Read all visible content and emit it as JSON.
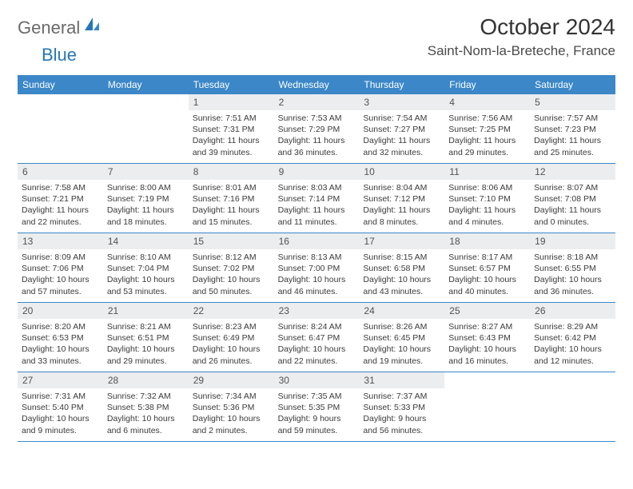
{
  "logo": {
    "text1": "General",
    "text2": "Blue"
  },
  "title": "October 2024",
  "location": "Saint-Nom-la-Breteche, France",
  "weekdays": [
    "Sunday",
    "Monday",
    "Tuesday",
    "Wednesday",
    "Thursday",
    "Friday",
    "Saturday"
  ],
  "colors": {
    "header_bar": "#3b87c8",
    "daynum_bg": "#ecedee",
    "logo_gray": "#6a6a6a",
    "logo_blue": "#2676b8"
  },
  "weeks": [
    [
      null,
      null,
      {
        "n": "1",
        "sr": "Sunrise: 7:51 AM",
        "ss": "Sunset: 7:31 PM",
        "dl": "Daylight: 11 hours and 39 minutes."
      },
      {
        "n": "2",
        "sr": "Sunrise: 7:53 AM",
        "ss": "Sunset: 7:29 PM",
        "dl": "Daylight: 11 hours and 36 minutes."
      },
      {
        "n": "3",
        "sr": "Sunrise: 7:54 AM",
        "ss": "Sunset: 7:27 PM",
        "dl": "Daylight: 11 hours and 32 minutes."
      },
      {
        "n": "4",
        "sr": "Sunrise: 7:56 AM",
        "ss": "Sunset: 7:25 PM",
        "dl": "Daylight: 11 hours and 29 minutes."
      },
      {
        "n": "5",
        "sr": "Sunrise: 7:57 AM",
        "ss": "Sunset: 7:23 PM",
        "dl": "Daylight: 11 hours and 25 minutes."
      }
    ],
    [
      {
        "n": "6",
        "sr": "Sunrise: 7:58 AM",
        "ss": "Sunset: 7:21 PM",
        "dl": "Daylight: 11 hours and 22 minutes."
      },
      {
        "n": "7",
        "sr": "Sunrise: 8:00 AM",
        "ss": "Sunset: 7:19 PM",
        "dl": "Daylight: 11 hours and 18 minutes."
      },
      {
        "n": "8",
        "sr": "Sunrise: 8:01 AM",
        "ss": "Sunset: 7:16 PM",
        "dl": "Daylight: 11 hours and 15 minutes."
      },
      {
        "n": "9",
        "sr": "Sunrise: 8:03 AM",
        "ss": "Sunset: 7:14 PM",
        "dl": "Daylight: 11 hours and 11 minutes."
      },
      {
        "n": "10",
        "sr": "Sunrise: 8:04 AM",
        "ss": "Sunset: 7:12 PM",
        "dl": "Daylight: 11 hours and 8 minutes."
      },
      {
        "n": "11",
        "sr": "Sunrise: 8:06 AM",
        "ss": "Sunset: 7:10 PM",
        "dl": "Daylight: 11 hours and 4 minutes."
      },
      {
        "n": "12",
        "sr": "Sunrise: 8:07 AM",
        "ss": "Sunset: 7:08 PM",
        "dl": "Daylight: 11 hours and 0 minutes."
      }
    ],
    [
      {
        "n": "13",
        "sr": "Sunrise: 8:09 AM",
        "ss": "Sunset: 7:06 PM",
        "dl": "Daylight: 10 hours and 57 minutes."
      },
      {
        "n": "14",
        "sr": "Sunrise: 8:10 AM",
        "ss": "Sunset: 7:04 PM",
        "dl": "Daylight: 10 hours and 53 minutes."
      },
      {
        "n": "15",
        "sr": "Sunrise: 8:12 AM",
        "ss": "Sunset: 7:02 PM",
        "dl": "Daylight: 10 hours and 50 minutes."
      },
      {
        "n": "16",
        "sr": "Sunrise: 8:13 AM",
        "ss": "Sunset: 7:00 PM",
        "dl": "Daylight: 10 hours and 46 minutes."
      },
      {
        "n": "17",
        "sr": "Sunrise: 8:15 AM",
        "ss": "Sunset: 6:58 PM",
        "dl": "Daylight: 10 hours and 43 minutes."
      },
      {
        "n": "18",
        "sr": "Sunrise: 8:17 AM",
        "ss": "Sunset: 6:57 PM",
        "dl": "Daylight: 10 hours and 40 minutes."
      },
      {
        "n": "19",
        "sr": "Sunrise: 8:18 AM",
        "ss": "Sunset: 6:55 PM",
        "dl": "Daylight: 10 hours and 36 minutes."
      }
    ],
    [
      {
        "n": "20",
        "sr": "Sunrise: 8:20 AM",
        "ss": "Sunset: 6:53 PM",
        "dl": "Daylight: 10 hours and 33 minutes."
      },
      {
        "n": "21",
        "sr": "Sunrise: 8:21 AM",
        "ss": "Sunset: 6:51 PM",
        "dl": "Daylight: 10 hours and 29 minutes."
      },
      {
        "n": "22",
        "sr": "Sunrise: 8:23 AM",
        "ss": "Sunset: 6:49 PM",
        "dl": "Daylight: 10 hours and 26 minutes."
      },
      {
        "n": "23",
        "sr": "Sunrise: 8:24 AM",
        "ss": "Sunset: 6:47 PM",
        "dl": "Daylight: 10 hours and 22 minutes."
      },
      {
        "n": "24",
        "sr": "Sunrise: 8:26 AM",
        "ss": "Sunset: 6:45 PM",
        "dl": "Daylight: 10 hours and 19 minutes."
      },
      {
        "n": "25",
        "sr": "Sunrise: 8:27 AM",
        "ss": "Sunset: 6:43 PM",
        "dl": "Daylight: 10 hours and 16 minutes."
      },
      {
        "n": "26",
        "sr": "Sunrise: 8:29 AM",
        "ss": "Sunset: 6:42 PM",
        "dl": "Daylight: 10 hours and 12 minutes."
      }
    ],
    [
      {
        "n": "27",
        "sr": "Sunrise: 7:31 AM",
        "ss": "Sunset: 5:40 PM",
        "dl": "Daylight: 10 hours and 9 minutes."
      },
      {
        "n": "28",
        "sr": "Sunrise: 7:32 AM",
        "ss": "Sunset: 5:38 PM",
        "dl": "Daylight: 10 hours and 6 minutes."
      },
      {
        "n": "29",
        "sr": "Sunrise: 7:34 AM",
        "ss": "Sunset: 5:36 PM",
        "dl": "Daylight: 10 hours and 2 minutes."
      },
      {
        "n": "30",
        "sr": "Sunrise: 7:35 AM",
        "ss": "Sunset: 5:35 PM",
        "dl": "Daylight: 9 hours and 59 minutes."
      },
      {
        "n": "31",
        "sr": "Sunrise: 7:37 AM",
        "ss": "Sunset: 5:33 PM",
        "dl": "Daylight: 9 hours and 56 minutes."
      },
      null,
      null
    ]
  ]
}
